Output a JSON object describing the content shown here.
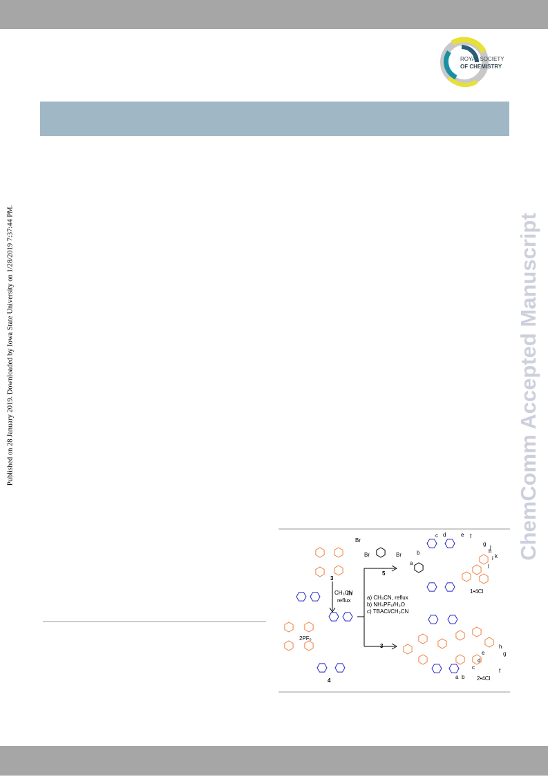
{
  "header": {
    "logo": {
      "line1": "ROYAL SOCIETY",
      "line2": "OF CHEMISTRY"
    }
  },
  "sidebar": {
    "published_note": "Published on 28 January 2019. Downloaded by Iowa State University on 1/28/2019 7:37:44 PM."
  },
  "watermark": "ChemComm Accepted Manuscript",
  "scheme": {
    "compound_3_top": "3",
    "compound_3_arrow": "3",
    "compound_4": "4",
    "compound_5": "5",
    "br_1": "Br",
    "br_2": "Br",
    "br_3": "Br",
    "br_4": "Br",
    "step_1_line1": "CH₃CN",
    "step_1_line2": "reflux",
    "cond_a": "a) CH₃CN, reflux",
    "cond_b": "b) NH₄PF₆/H₂O",
    "cond_c": "c) TBACl/CH₃CN",
    "counterion_4": "2PF₆",
    "product_1": "1•4Cl",
    "product_2": "2•4Cl",
    "p1_letters": [
      "b",
      "a",
      "c",
      "d",
      "e",
      "f",
      "g",
      "h",
      "i",
      "j",
      "k",
      "l"
    ],
    "p2_letters": [
      "a",
      "b",
      "c",
      "d",
      "e",
      "f",
      "g",
      "h"
    ]
  }
}
